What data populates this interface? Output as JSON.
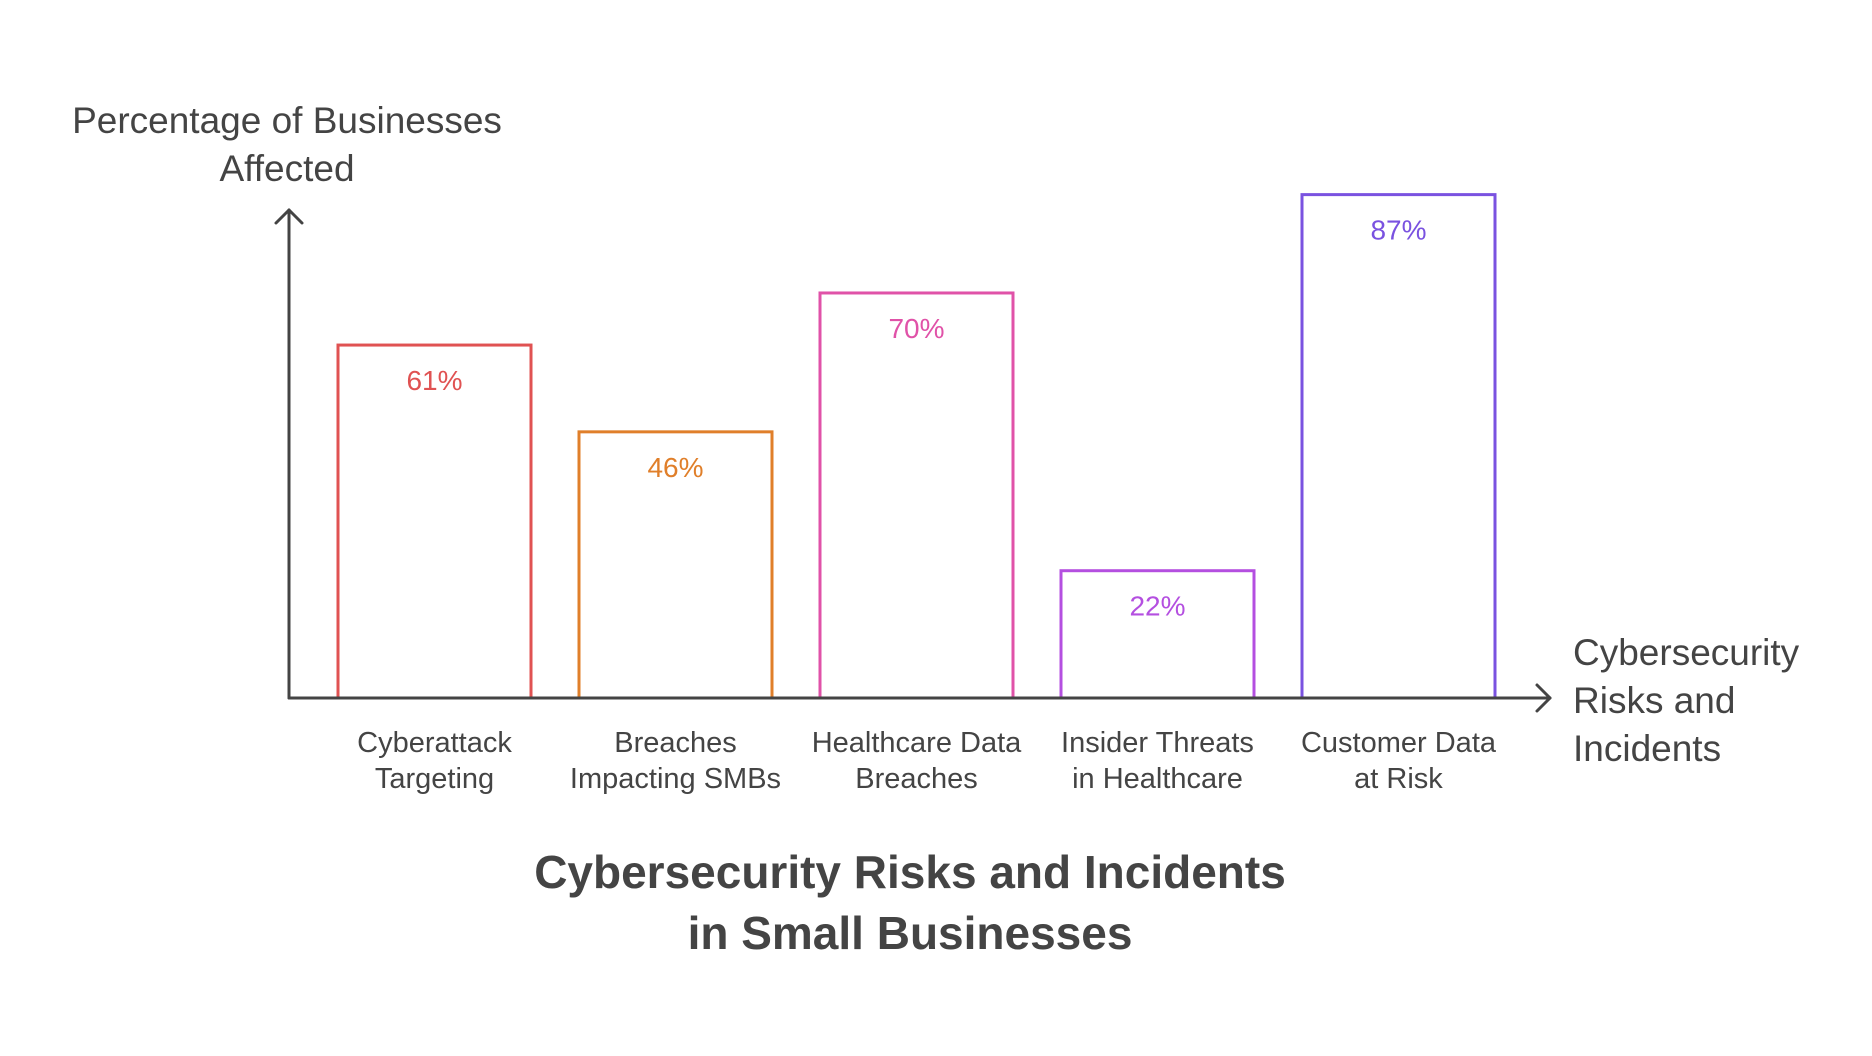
{
  "chart_data": {
    "type": "bar",
    "title": "Cybersecurity Risks and Incidents in Small Businesses",
    "title_lines": [
      "Cybersecurity Risks and Incidents",
      "in Small Businesses"
    ],
    "xlabel": "Cybersecurity Risks and Incidents",
    "xlabel_lines": [
      "Cybersecurity",
      "Risks and",
      "Incidents"
    ],
    "ylabel": "Percentage of Businesses Affected",
    "ylabel_lines": [
      "Percentage of Businesses",
      "Affected"
    ],
    "ylim": [
      0,
      100
    ],
    "grid": false,
    "legend": "none",
    "unit": "%",
    "categories": [
      "Cyberattack Targeting",
      "Breaches Impacting SMBs",
      "Healthcare Data Breaches",
      "Insider Threats in Healthcare",
      "Customer Data at Risk"
    ],
    "category_lines": [
      [
        "Cyberattack",
        "Targeting"
      ],
      [
        "Breaches",
        "Impacting SMBs"
      ],
      [
        "Healthcare Data",
        "Breaches"
      ],
      [
        "Insider Threats",
        "in Healthcare"
      ],
      [
        "Customer Data",
        "at Risk"
      ]
    ],
    "values": [
      61,
      46,
      70,
      22,
      87
    ],
    "value_labels": [
      "61%",
      "46%",
      "70%",
      "22%",
      "87%"
    ],
    "colors": [
      "#e05252",
      "#e07f2a",
      "#e052a8",
      "#b44fe0",
      "#7a52e0"
    ],
    "axis_color": "#444444"
  }
}
